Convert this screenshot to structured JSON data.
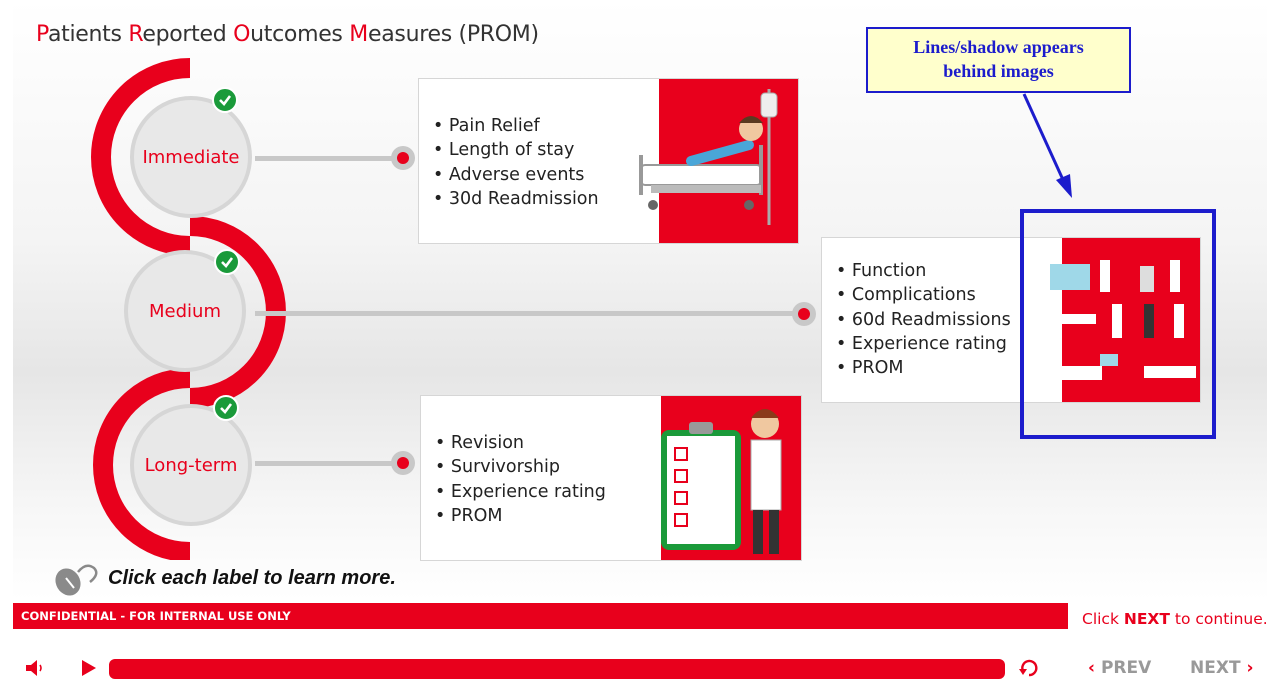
{
  "title": {
    "parts": [
      {
        "cap": "P",
        "rest": "atients "
      },
      {
        "cap": "R",
        "rest": "eported "
      },
      {
        "cap": "O",
        "rest": "utcomes "
      },
      {
        "cap": "M",
        "rest": "easures (PROM)"
      }
    ]
  },
  "stages": [
    {
      "label": "Immediate",
      "items": [
        "Pain Relief",
        "Length of stay",
        "Adverse events",
        "30d Readmission"
      ]
    },
    {
      "label": "Medium",
      "items": [
        "Function",
        "Complications",
        "60d Readmissions",
        "Experience rating",
        "PROM"
      ]
    },
    {
      "label": "Long-term",
      "items": [
        "Revision",
        "Survivorship",
        "Experience rating",
        "PROM"
      ]
    }
  ],
  "annotation": {
    "text_line1": "Lines/shadow appears",
    "text_line2": "behind images"
  },
  "instruction": "Click each label to learn more.",
  "footer": {
    "confidential": "CONFIDENTIAL - FOR INTERNAL USE ONLY",
    "hint_prefix": "Click ",
    "hint_bold": "NEXT",
    "hint_suffix": " to continue."
  },
  "player": {
    "prev_label": "PREV",
    "next_label": "NEXT",
    "progress": 0.0
  },
  "colors": {
    "accent": "#e8001c",
    "check": "#1a9a3a",
    "annotation": "#1c1ccc"
  },
  "icons": [
    "check-icon",
    "mouse-icon",
    "volume-icon",
    "play-icon",
    "replay-icon",
    "chevron-left-icon",
    "chevron-right-icon"
  ]
}
